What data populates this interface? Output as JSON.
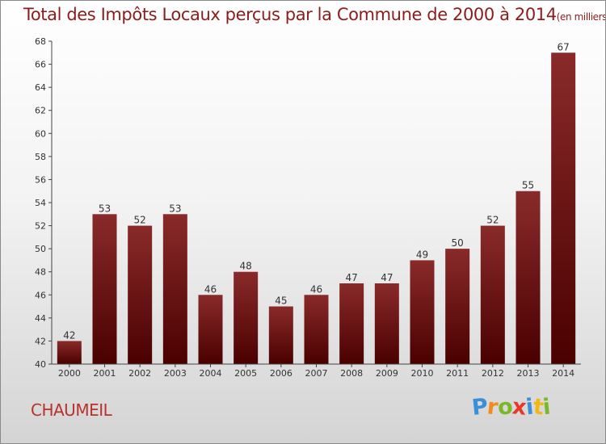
{
  "chart_data": {
    "type": "bar",
    "title": "Total des Impôts Locaux perçus par la Commune de 2000 à 2014",
    "unit_note": "(en milliers d'€)",
    "categories": [
      "2000",
      "2001",
      "2002",
      "2003",
      "2004",
      "2005",
      "2006",
      "2007",
      "2008",
      "2009",
      "2010",
      "2011",
      "2012",
      "2013",
      "2014"
    ],
    "values": [
      42,
      53,
      52,
      53,
      46,
      48,
      45,
      46,
      47,
      47,
      49,
      50,
      52,
      55,
      67
    ],
    "ylim": [
      40,
      68
    ],
    "yticks": [
      40,
      42,
      44,
      46,
      48,
      50,
      52,
      54,
      56,
      58,
      60,
      62,
      64,
      66,
      68
    ],
    "grid": false,
    "bar_color": "#6e1414"
  },
  "commune": "CHAUMEIL",
  "brand": {
    "letters": [
      {
        "ch": "P",
        "color": "#3a8fd6"
      },
      {
        "ch": "r",
        "color": "#f08c1e"
      },
      {
        "ch": "o",
        "color": "#7ab828"
      },
      {
        "ch": "x",
        "color": "#e8382a"
      },
      {
        "ch": "i",
        "color": "#3a8fd6"
      },
      {
        "ch": "t",
        "color": "#f2b818"
      },
      {
        "ch": "i",
        "color": "#7ab828"
      }
    ]
  }
}
